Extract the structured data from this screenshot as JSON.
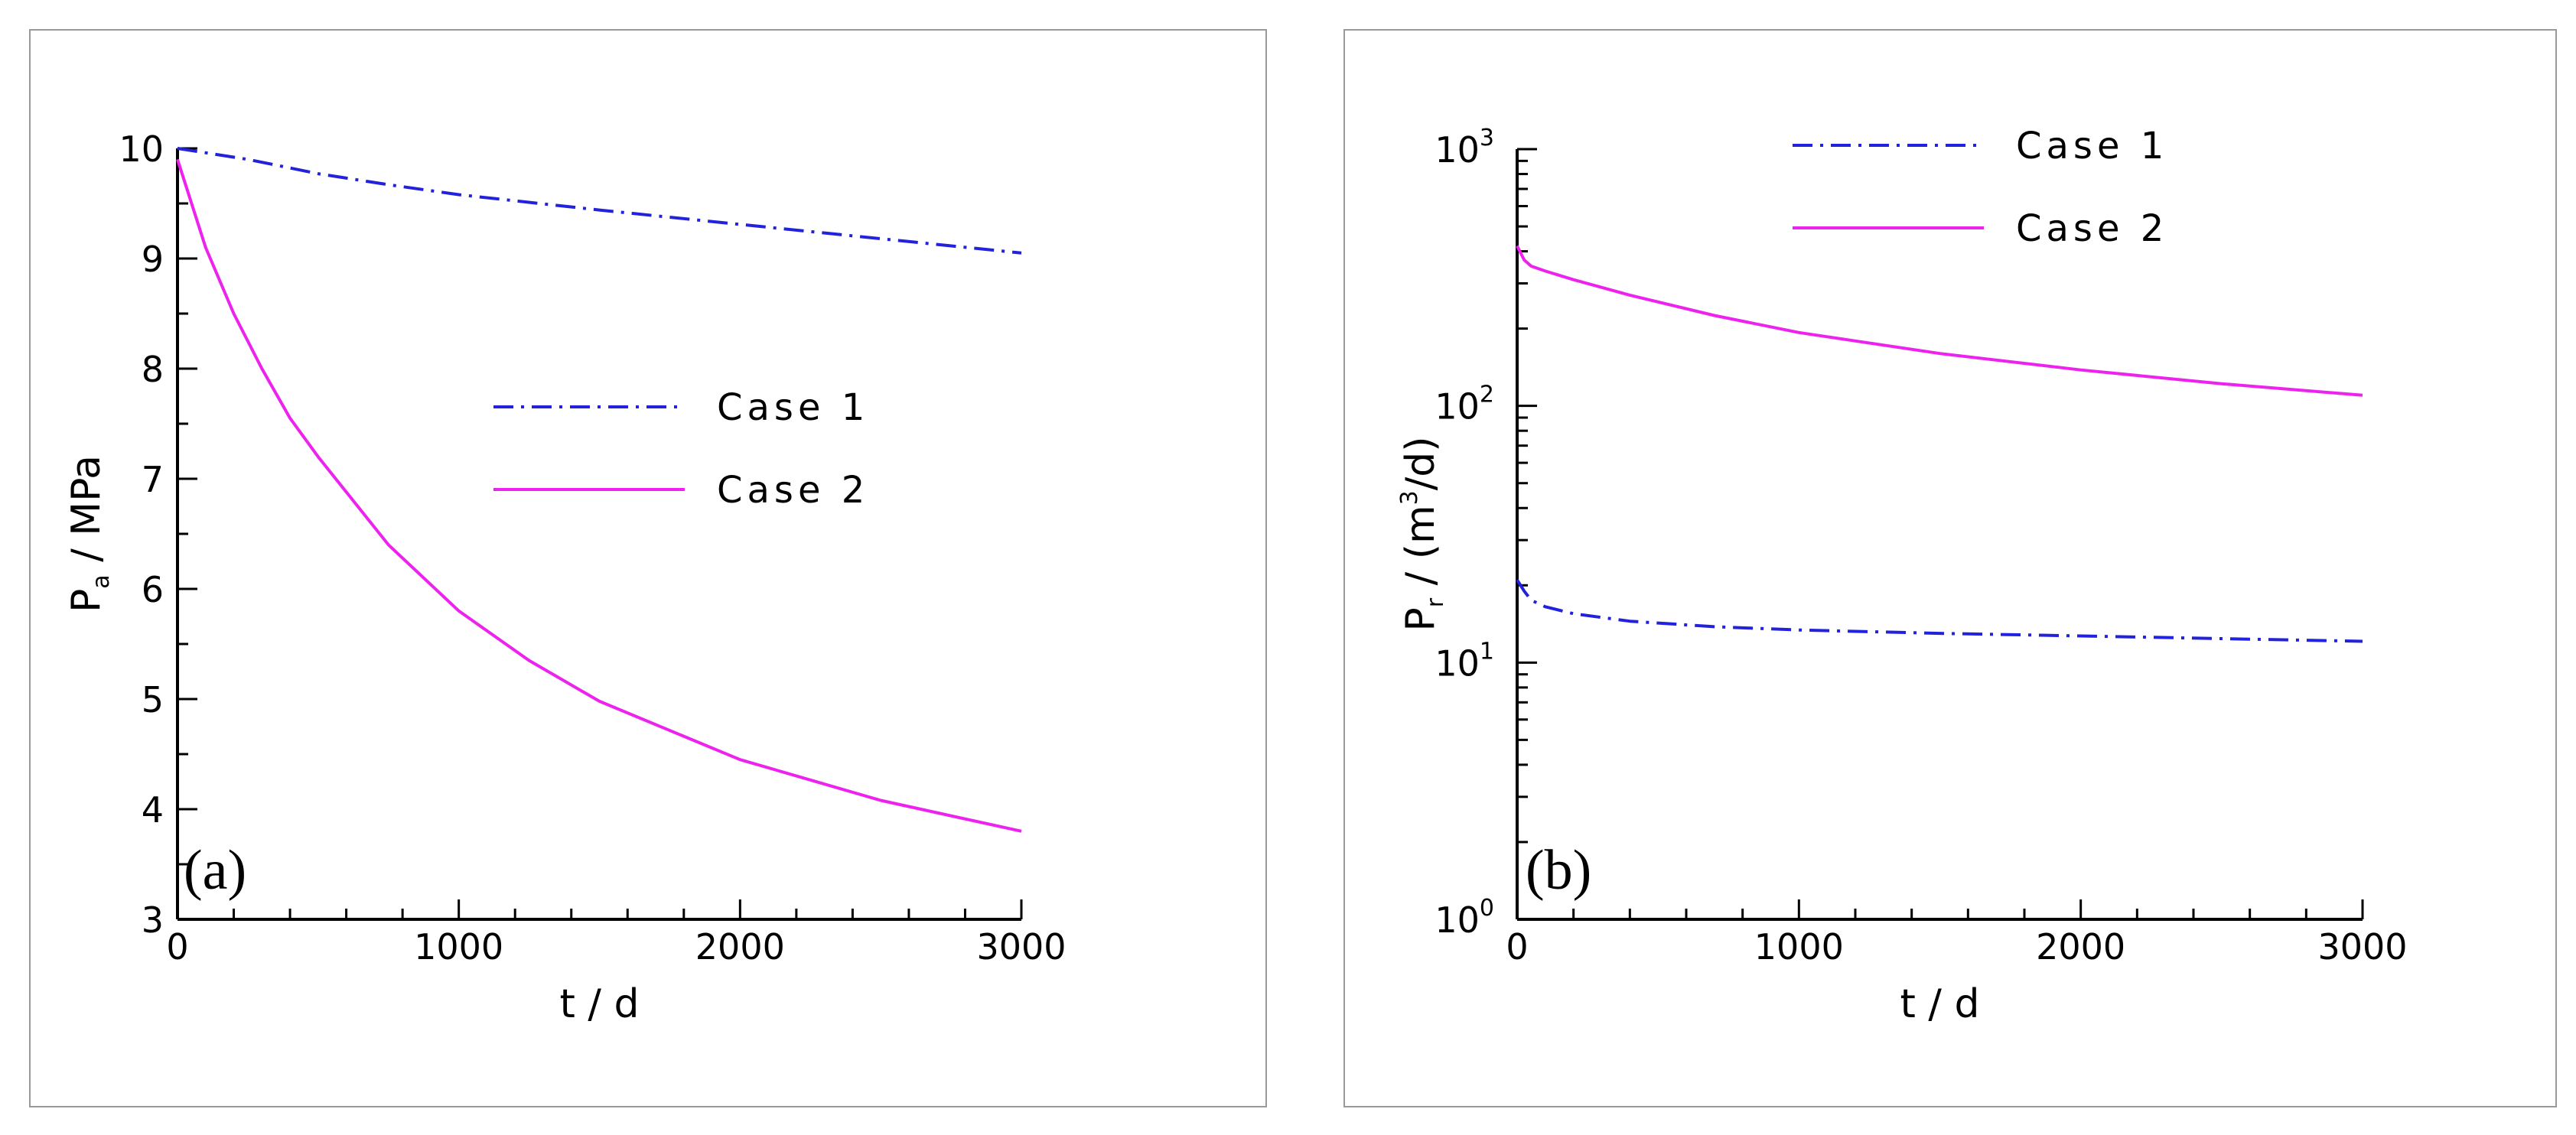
{
  "chart_data": [
    {
      "type": "line",
      "panel_label": "(a)",
      "xlabel": "t / d",
      "ylabel_main": "P",
      "ylabel_sub": "a",
      "ylabel_rest": " / MPa",
      "xlim": [
        0,
        3000
      ],
      "ylim": [
        3,
        10
      ],
      "yscale": "linear",
      "x_ticks": [
        0,
        1000,
        2000,
        3000
      ],
      "x_tick_labels": [
        "0",
        "1000",
        "2000",
        "3000"
      ],
      "y_ticks": [
        3,
        4,
        5,
        6,
        7,
        8,
        9,
        10
      ],
      "y_tick_labels": [
        "3",
        "4",
        "5",
        "6",
        "7",
        "8",
        "9",
        "10"
      ],
      "legend_position": "center-right",
      "series": [
        {
          "name": "Case 1",
          "color": "#2222dd",
          "style": "dashdot",
          "x": [
            0,
            250,
            500,
            750,
            1000,
            1500,
            2000,
            2500,
            3000
          ],
          "y": [
            10.0,
            9.9,
            9.77,
            9.67,
            9.58,
            9.44,
            9.31,
            9.18,
            9.05
          ]
        },
        {
          "name": "Case 2",
          "color": "#ee22ee",
          "style": "solid",
          "x": [
            0,
            100,
            200,
            300,
            400,
            500,
            750,
            1000,
            1250,
            1500,
            2000,
            2500,
            3000
          ],
          "y": [
            9.9,
            9.1,
            8.5,
            8.0,
            7.55,
            7.2,
            6.4,
            5.8,
            5.35,
            4.98,
            4.45,
            4.08,
            3.8
          ]
        }
      ]
    },
    {
      "type": "line",
      "panel_label": "(b)",
      "xlabel": "t / d",
      "ylabel_main": "P",
      "ylabel_sub": "r",
      "ylabel_rest": " / (m",
      "ylabel_sup": "3",
      "ylabel_end": "/d)",
      "xlim": [
        0,
        3000
      ],
      "ylim": [
        1,
        1000
      ],
      "yscale": "log",
      "x_ticks": [
        0,
        1000,
        2000,
        3000
      ],
      "x_tick_labels": [
        "0",
        "1000",
        "2000",
        "3000"
      ],
      "y_ticks": [
        1,
        10,
        100,
        1000
      ],
      "y_tick_bases": [
        "10",
        "10",
        "10",
        "10"
      ],
      "y_tick_exps": [
        "0",
        "1",
        "2",
        "3"
      ],
      "legend_position": "top-center",
      "series": [
        {
          "name": "Case 1",
          "color": "#2222dd",
          "style": "dashdot",
          "x": [
            0,
            25,
            50,
            100,
            200,
            400,
            700,
            1000,
            1500,
            2000,
            2500,
            3000
          ],
          "y": [
            21,
            19,
            17.5,
            16.5,
            15.5,
            14.5,
            13.8,
            13.4,
            13.0,
            12.7,
            12.4,
            12.1
          ]
        },
        {
          "name": "Case 2",
          "color": "#ee22ee",
          "style": "solid",
          "x": [
            0,
            25,
            50,
            100,
            200,
            400,
            700,
            1000,
            1500,
            2000,
            2500,
            3000
          ],
          "y": [
            420,
            370,
            350,
            335,
            310,
            270,
            225,
            193,
            160,
            138,
            122,
            110
          ]
        }
      ]
    }
  ]
}
